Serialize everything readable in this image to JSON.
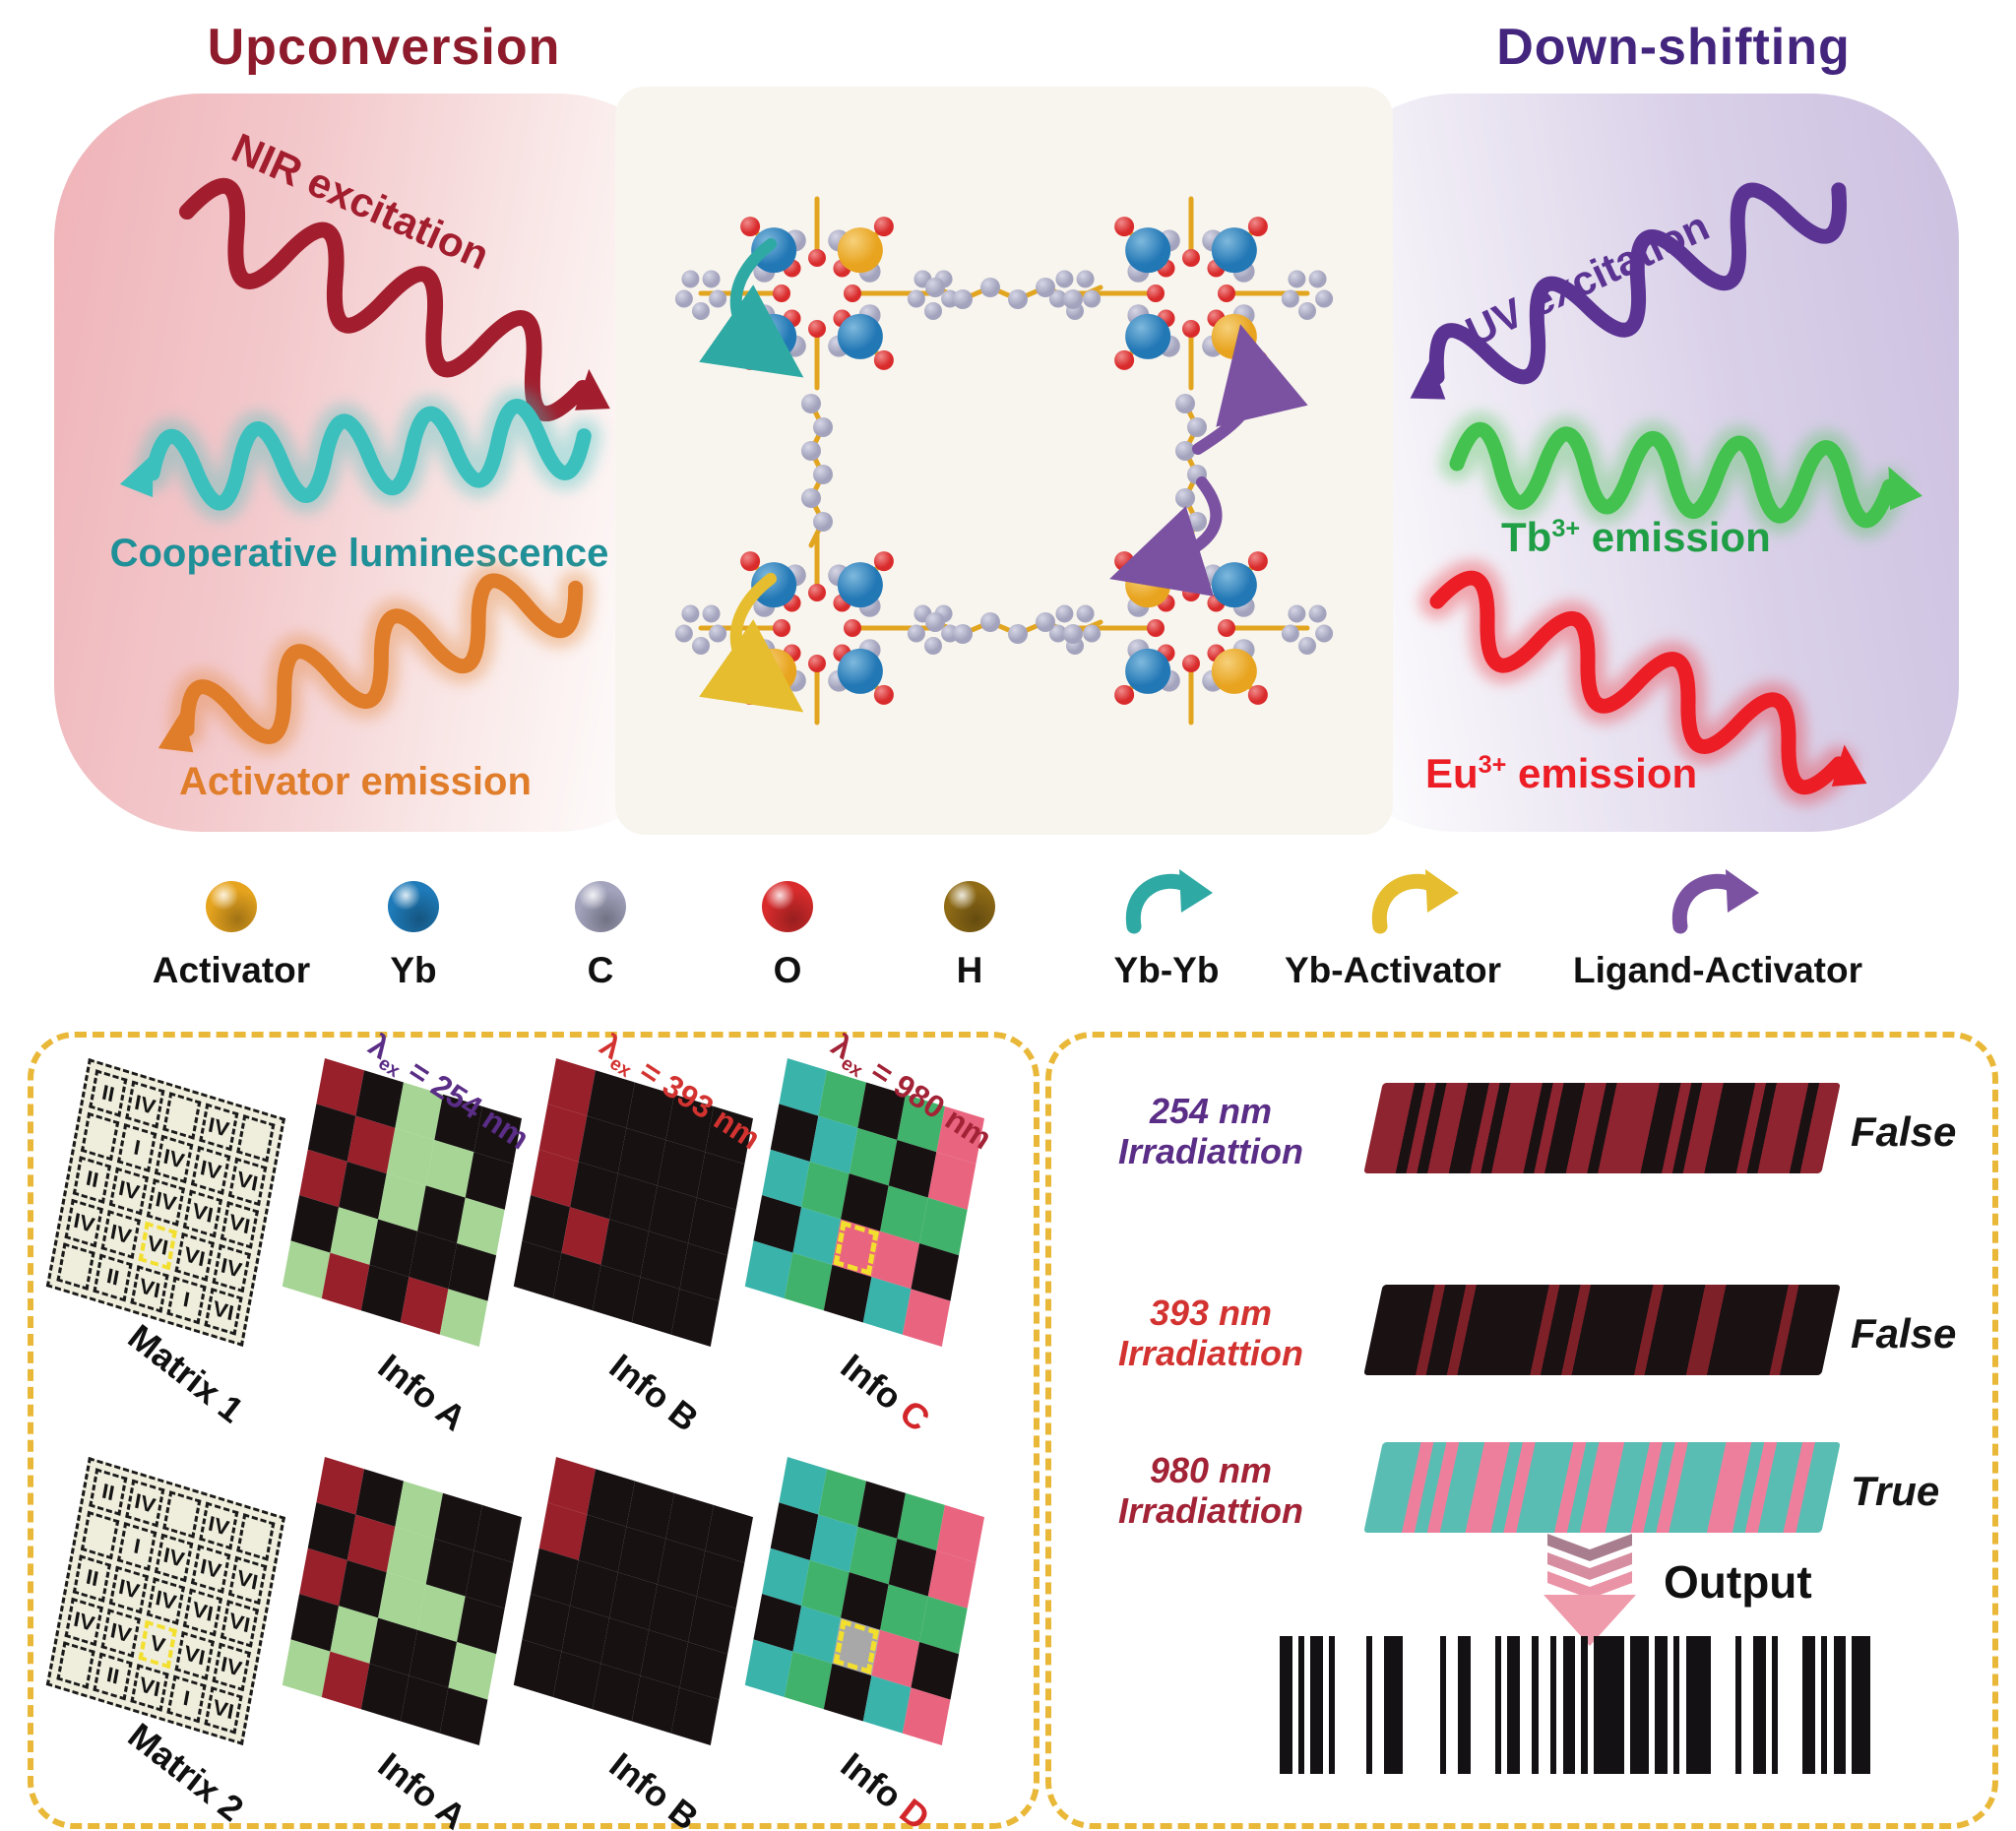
{
  "figure": {
    "left_title": "Upconversion",
    "left_title_color": "#8e1b2c",
    "right_title": "Down-shifting",
    "right_title_color": "#44257e"
  },
  "upconversion": {
    "nir_label": "NIR excitation",
    "nir_color": "#a21e2e",
    "coop_label": "Cooperative luminescence",
    "coop_text_color": "#1f9097",
    "coop_wave_color": "#3cc0bd",
    "activator_label": "Activator emission",
    "activator_color": "#e07d2a"
  },
  "downshifting": {
    "uv_label": "UV excitation",
    "uv_color": "#5b3393",
    "tb_base": "Tb",
    "tb_sup": "3+",
    "tb_tail": " emission",
    "tb_text_color": "#1f9e46",
    "tb_wave_color": "#44c24f",
    "eu_base": "Eu",
    "eu_sup": "3+",
    "eu_tail": " emission",
    "eu_color": "#ec1d25"
  },
  "legend": {
    "atoms": [
      {
        "name": "Activator",
        "color": "#e6a41e"
      },
      {
        "name": "Yb",
        "color": "#1e7ab8"
      },
      {
        "name": "C",
        "color": "#a3a3bd"
      },
      {
        "name": "O",
        "color": "#d92b2c"
      },
      {
        "name": "H",
        "color": "#8f6b16"
      }
    ],
    "arrows": [
      {
        "name": "Yb-Yb",
        "color": "#2fa9a4"
      },
      {
        "name": "Yb-Activator",
        "color": "#e5bd2e"
      },
      {
        "name": "Ligand-Activator",
        "color": "#7b52a1"
      }
    ]
  },
  "molecule": {
    "bond_color": "#e2a51f",
    "carbon_color": "#a3a3bd",
    "oxygen_color": "#d92b2c",
    "yb_color": "#2277b5",
    "activator_color": "#e8a41f",
    "clusters": [
      {
        "corners": [
          "Yb",
          "Act",
          "Yb",
          "Yb"
        ]
      },
      {
        "corners": [
          "Yb",
          "Yb",
          "Yb",
          "Act"
        ]
      },
      {
        "corners": [
          "Yb",
          "Yb",
          "Act",
          "Yb"
        ]
      },
      {
        "corners": [
          "Act",
          "Yb",
          "Yb",
          "Act"
        ]
      }
    ]
  },
  "left_panel": {
    "lambda_prefix": "λ",
    "lambda_sub": "ex",
    "lambda_eq": " = ",
    "cell_colors": {
      "R": "#98202b",
      "K": "#171112",
      "G": "#a6d595",
      "T": "#3ab3ab",
      "Gr": "#41b26b",
      "P": "#e9647f",
      "X": "#a8a8a8"
    },
    "rows": [
      {
        "matrix": {
          "label": "Matrix 1",
          "highlight": [
            3,
            2
          ],
          "cells": [
            [
              "II",
              "IV",
              "",
              "IV",
              ""
            ],
            [
              "",
              "I",
              "IV",
              "IV",
              "VI"
            ],
            [
              "II",
              "IV",
              "IV",
              "VI",
              "VI"
            ],
            [
              "IV",
              "IV",
              "VI",
              "VI",
              "IV"
            ],
            [
              "",
              "II",
              "VI",
              "I",
              "VI"
            ]
          ]
        },
        "infos": [
          {
            "label": "Info",
            "suffix": "A",
            "suffix_color": "#101010",
            "lambda": "254 nm",
            "lambda_color": "#5a2d86",
            "cells": [
              [
                "R",
                "K",
                "G",
                "K",
                "K"
              ],
              [
                "K",
                "R",
                "G",
                "G",
                "K"
              ],
              [
                "R",
                "K",
                "G",
                "K",
                "G"
              ],
              [
                "K",
                "G",
                "K",
                "K",
                "K"
              ],
              [
                "G",
                "R",
                "K",
                "R",
                "G"
              ]
            ]
          },
          {
            "label": "Info",
            "suffix": "B",
            "suffix_color": "#101010",
            "lambda": "393 nm",
            "lambda_color": "#d33330",
            "cells": [
              [
                "R",
                "K",
                "K",
                "K",
                "K"
              ],
              [
                "R",
                "K",
                "K",
                "K",
                "K"
              ],
              [
                "R",
                "K",
                "K",
                "K",
                "K"
              ],
              [
                "K",
                "R",
                "K",
                "K",
                "K"
              ],
              [
                "K",
                "K",
                "K",
                "K",
                "K"
              ]
            ]
          },
          {
            "label": "Info",
            "suffix": "C",
            "suffix_color": "#d2262b",
            "lambda": "980 nm",
            "lambda_color": "#a32336",
            "highlight": [
              3,
              2
            ],
            "cells": [
              [
                "T",
                "Gr",
                "K",
                "Gr",
                "P"
              ],
              [
                "K",
                "T",
                "Gr",
                "K",
                "P"
              ],
              [
                "T",
                "Gr",
                "K",
                "Gr",
                "Gr"
              ],
              [
                "K",
                "T",
                "P",
                "P",
                "K"
              ],
              [
                "T",
                "Gr",
                "K",
                "T",
                "P"
              ]
            ]
          }
        ]
      },
      {
        "matrix": {
          "label": "Matrix 2",
          "highlight": [
            3,
            2
          ],
          "cells": [
            [
              "II",
              "IV",
              "",
              "IV",
              ""
            ],
            [
              "",
              "I",
              "IV",
              "IV",
              "VI"
            ],
            [
              "II",
              "IV",
              "IV",
              "VI",
              "VI"
            ],
            [
              "IV",
              "IV",
              "V",
              "VI",
              "IV"
            ],
            [
              "",
              "II",
              "VI",
              "I",
              "VI"
            ]
          ]
        },
        "infos": [
          {
            "label": "Info",
            "suffix": "A",
            "suffix_color": "#101010",
            "cells": [
              [
                "R",
                "K",
                "G",
                "K",
                "K"
              ],
              [
                "K",
                "R",
                "G",
                "K",
                "K"
              ],
              [
                "R",
                "K",
                "G",
                "G",
                "K"
              ],
              [
                "K",
                "G",
                "K",
                "K",
                "G"
              ],
              [
                "G",
                "R",
                "K",
                "K",
                "K"
              ]
            ]
          },
          {
            "label": "Info",
            "suffix": "B",
            "suffix_color": "#101010",
            "cells": [
              [
                "R",
                "K",
                "K",
                "K",
                "K"
              ],
              [
                "R",
                "K",
                "K",
                "K",
                "K"
              ],
              [
                "K",
                "K",
                "K",
                "K",
                "K"
              ],
              [
                "K",
                "K",
                "K",
                "K",
                "K"
              ],
              [
                "K",
                "K",
                "K",
                "K",
                "K"
              ]
            ]
          },
          {
            "label": "Info",
            "suffix": "D",
            "suffix_color": "#d2262b",
            "highlight": [
              3,
              2
            ],
            "cells": [
              [
                "T",
                "Gr",
                "K",
                "Gr",
                "P"
              ],
              [
                "K",
                "T",
                "Gr",
                "K",
                "P"
              ],
              [
                "T",
                "Gr",
                "K",
                "Gr",
                "Gr"
              ],
              [
                "K",
                "T",
                "X",
                "P",
                "K"
              ],
              [
                "T",
                "Gr",
                "K",
                "T",
                "P"
              ]
            ]
          }
        ]
      }
    ]
  },
  "right_panel": {
    "rows": [
      {
        "line1": "254 nm",
        "line2": "Irradiattion",
        "label_color": "#5a2d86",
        "verdict": "False",
        "stripe_colors": [
          "#8e2430",
          "#1a1113"
        ],
        "stripes": [
          [
            0,
            3
          ],
          [
            1,
            1
          ],
          [
            0,
            1
          ],
          [
            1,
            1
          ],
          [
            0,
            2
          ],
          [
            1,
            2
          ],
          [
            0,
            1
          ],
          [
            1,
            1
          ],
          [
            0,
            3
          ],
          [
            1,
            1
          ],
          [
            0,
            1
          ],
          [
            1,
            2
          ],
          [
            0,
            2
          ],
          [
            1,
            1
          ],
          [
            0,
            4
          ],
          [
            1,
            2
          ],
          [
            0,
            1
          ],
          [
            1,
            1
          ],
          [
            0,
            2
          ],
          [
            1,
            3
          ],
          [
            0,
            1
          ],
          [
            1,
            1
          ],
          [
            0,
            3
          ],
          [
            1,
            1
          ],
          [
            0,
            2
          ]
        ]
      },
      {
        "line1": "393 nm",
        "line2": "Irradiattion",
        "label_color": "#d33330",
        "verdict": "False",
        "stripe_colors": [
          "#1a1113",
          "#7e2028"
        ],
        "stripes": [
          [
            0,
            5
          ],
          [
            1,
            1
          ],
          [
            0,
            2
          ],
          [
            1,
            1
          ],
          [
            0,
            7
          ],
          [
            1,
            1
          ],
          [
            0,
            2
          ],
          [
            1,
            1
          ],
          [
            0,
            6
          ],
          [
            1,
            1
          ],
          [
            0,
            4
          ],
          [
            1,
            2
          ],
          [
            0,
            6
          ],
          [
            1,
            1
          ],
          [
            0,
            4
          ]
        ]
      },
      {
        "line1": "980 nm",
        "line2": "Irradiattion",
        "label_color": "#a32336",
        "verdict": "True",
        "stripe_colors": [
          "#5abdb3",
          "#ee7f9c"
        ],
        "stripes": [
          [
            0,
            3
          ],
          [
            1,
            1
          ],
          [
            0,
            1
          ],
          [
            1,
            1
          ],
          [
            0,
            2
          ],
          [
            1,
            2
          ],
          [
            0,
            1
          ],
          [
            1,
            1
          ],
          [
            0,
            3
          ],
          [
            1,
            1
          ],
          [
            0,
            1
          ],
          [
            1,
            2
          ],
          [
            0,
            2
          ],
          [
            1,
            1
          ],
          [
            0,
            1
          ],
          [
            1,
            1
          ],
          [
            0,
            3
          ],
          [
            1,
            2
          ],
          [
            0,
            1
          ],
          [
            1,
            1
          ],
          [
            0,
            2
          ],
          [
            1,
            1
          ],
          [
            0,
            2
          ]
        ]
      }
    ],
    "output_label": "Output",
    "output_arrow_colors": [
      "#a87e8e",
      "#d78da0",
      "#ea93a6",
      "#ef9bab"
    ],
    "barcode_color": "#141114",
    "barcode": [
      [
        2,
        1
      ],
      [
        1,
        1
      ],
      [
        2,
        1
      ],
      [
        1,
        5
      ],
      [
        1,
        2
      ],
      [
        3,
        6
      ],
      [
        1,
        2
      ],
      [
        2,
        4
      ],
      [
        1,
        1
      ],
      [
        2,
        2
      ],
      [
        1,
        2
      ],
      [
        1,
        1
      ],
      [
        2,
        1
      ],
      [
        1,
        1
      ],
      [
        5,
        1
      ],
      [
        3,
        1
      ],
      [
        2,
        1
      ],
      [
        1,
        1
      ],
      [
        4,
        4
      ],
      [
        1,
        2
      ],
      [
        2,
        1
      ],
      [
        1,
        4
      ],
      [
        2,
        1
      ],
      [
        1,
        1
      ],
      [
        2,
        1
      ],
      [
        3,
        0
      ]
    ]
  }
}
